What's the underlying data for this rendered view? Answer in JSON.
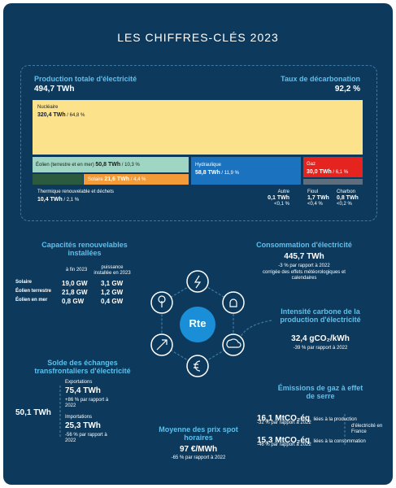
{
  "title": "LES CHIFFRES-CLÉS 2023",
  "production": {
    "label": "Production totale d'électricité",
    "value": "494,7 TWh",
    "decarbonation_label": "Taux de décarbonation",
    "decarbonation_value": "92,2 %",
    "sources": [
      {
        "name": "Nucléaire",
        "value": "320,4 TWh",
        "share": "/ 64,8 %"
      },
      {
        "name": "Éolien (terrestre et en mer)",
        "value": "50,8 TWh",
        "share": "/ 10,3 %"
      },
      {
        "name": "Solaire",
        "value": "21,6 TWh",
        "share": "/ 4,4 %"
      },
      {
        "name": "Hydraulique",
        "value": "58,8 TWh",
        "share": "/ 11,9 %"
      },
      {
        "name": "Gaz",
        "value": "30,0 TWh",
        "share": "/ 6,1 %"
      },
      {
        "name": "Thermique renouvelable et déchets",
        "value": "10,4 TWh",
        "share": "/ 2,1 %"
      },
      {
        "name": "Autre",
        "value": "0,1 TWh",
        "share": "<0,1 %"
      },
      {
        "name": "Fioul",
        "value": "1,7 TWh",
        "share": "<0,4 %"
      },
      {
        "name": "Charbon",
        "value": "0,8 TWh",
        "share": "<0,2 %"
      }
    ]
  },
  "capacities": {
    "title": "Capacités renouvelables installées",
    "col1": "à fin 2023",
    "col2": "puissance installée en 2023",
    "rows": [
      [
        "Solaire",
        "19,0 GW",
        "3,1 GW"
      ],
      [
        "Éolien terrestre",
        "21,8 GW",
        "1,2 GW"
      ],
      [
        "Éolien en mer",
        "0,8 GW",
        "0,4 GW"
      ]
    ]
  },
  "consumption": {
    "title": "Consommation d'électricité",
    "value": "445,7 TWh",
    "change": "-3 % par rapport à 2022",
    "note": "corrigée des effets météorologiques et calendaires"
  },
  "carbon_intensity": {
    "title": "Intensité carbone de la production d'électricité",
    "value": "32,4 gCO₂/kWh",
    "change": "-39 % par rapport à 2022"
  },
  "exchanges": {
    "title": "Solde des échanges transfrontaliers d'électricité",
    "balance": "50,1 TWh",
    "exports": {
      "label": "Exportations",
      "value": "75,4 TWh",
      "change": "+86 % par rapport à 2022"
    },
    "imports": {
      "label": "Importations",
      "value": "25,3 TWh",
      "change": "-56 % par rapport à 2022"
    }
  },
  "emissions": {
    "title": "Émissions de gaz à effet de serre",
    "production": {
      "value": "16,1 MtCO₂éq",
      "label": "liées à la production",
      "change": "-32 % par rapport à 2022"
    },
    "consumption": {
      "value": "15,3 MtCO₂éq",
      "label": "liées à la consommation",
      "change": "-46 % par rapport à 2022"
    },
    "scope": "d'électricité en France"
  },
  "spot_price": {
    "title": "Moyenne des prix spot horaires",
    "value": "97 €/MWh",
    "change": "-65 % par rapport à 2022"
  },
  "logo": "Rte"
}
